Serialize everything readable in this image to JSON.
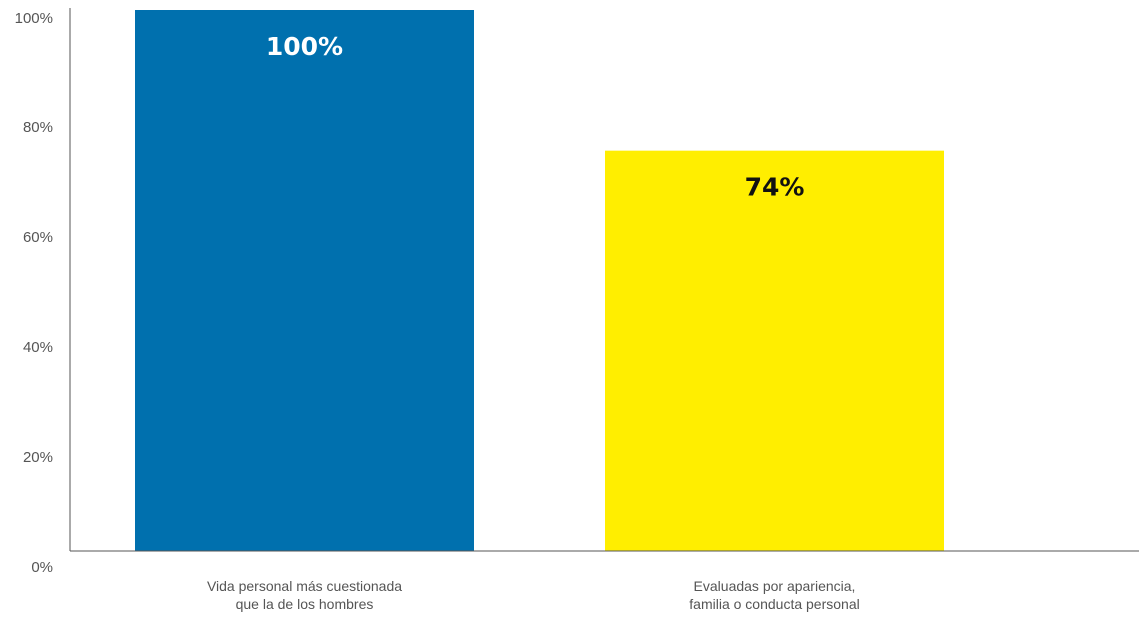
{
  "chart_data": {
    "type": "bar",
    "title": "",
    "xlabel": "",
    "ylabel": "",
    "ylim": [
      0,
      100
    ],
    "grid": false,
    "yticks": [
      "0%",
      "20%",
      "40%",
      "60%",
      "80%",
      "100%"
    ],
    "categories": [
      [
        "Vida personal más cuestionada",
        "que la de los hombres"
      ],
      [
        "Evaluadas por apariencia,",
        "familia o conducta personal"
      ]
    ],
    "values": [
      100,
      74
    ],
    "data_labels": [
      "100%",
      "74%"
    ],
    "colors": [
      "#0070ae",
      "#ffee00"
    ],
    "label_colors": [
      "#ffffff",
      "#111111"
    ],
    "axis_color": "#555555"
  }
}
